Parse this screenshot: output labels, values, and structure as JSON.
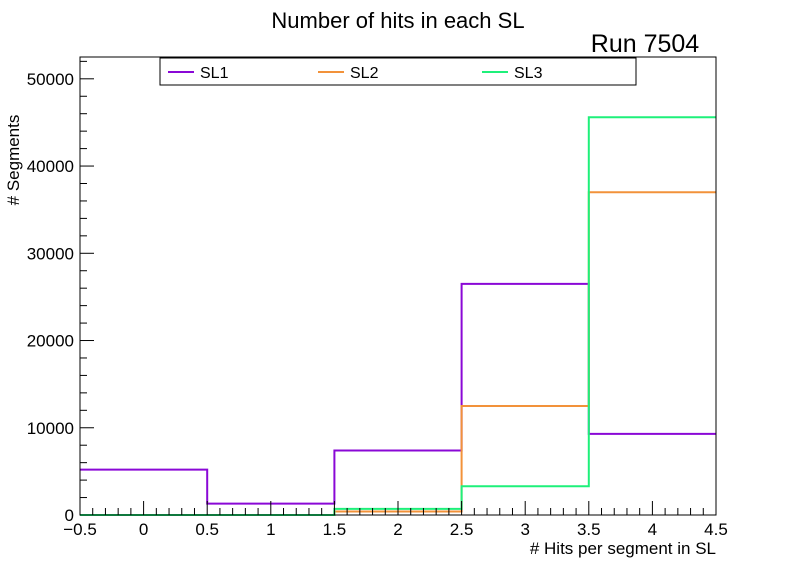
{
  "chart_data": {
    "type": "step-histogram",
    "title": "Number of hits in each SL",
    "annotation": "Run 7504",
    "xlabel": "# Hits per segment in SL",
    "ylabel": "# Segments",
    "xlim": [
      -0.5,
      4.5
    ],
    "ylim": [
      0,
      52500
    ],
    "x_ticks": [
      -0.5,
      0,
      0.5,
      1,
      1.5,
      2,
      2.5,
      3,
      3.5,
      4,
      4.5
    ],
    "x_tick_labels": [
      "−0.5",
      "0",
      "0.5",
      "1",
      "1.5",
      "2",
      "2.5",
      "3",
      "3.5",
      "4",
      "4.5"
    ],
    "y_ticks": [
      0,
      10000,
      20000,
      30000,
      40000,
      50000
    ],
    "y_tick_labels": [
      "0",
      "10000",
      "20000",
      "30000",
      "40000",
      "50000"
    ],
    "bin_edges": [
      -0.5,
      0.5,
      1.5,
      2.5,
      3.5,
      4.5
    ],
    "series": [
      {
        "name": "SL1",
        "color": "#8a08d6",
        "values": [
          5200,
          1300,
          7400,
          26500,
          9300
        ]
      },
      {
        "name": "SL2",
        "color": "#f2923a",
        "values": [
          0,
          0,
          400,
          12500,
          37000
        ]
      },
      {
        "name": "SL3",
        "color": "#1ef07a",
        "values": [
          0,
          0,
          700,
          3300,
          45600
        ]
      }
    ],
    "legend": "top"
  }
}
